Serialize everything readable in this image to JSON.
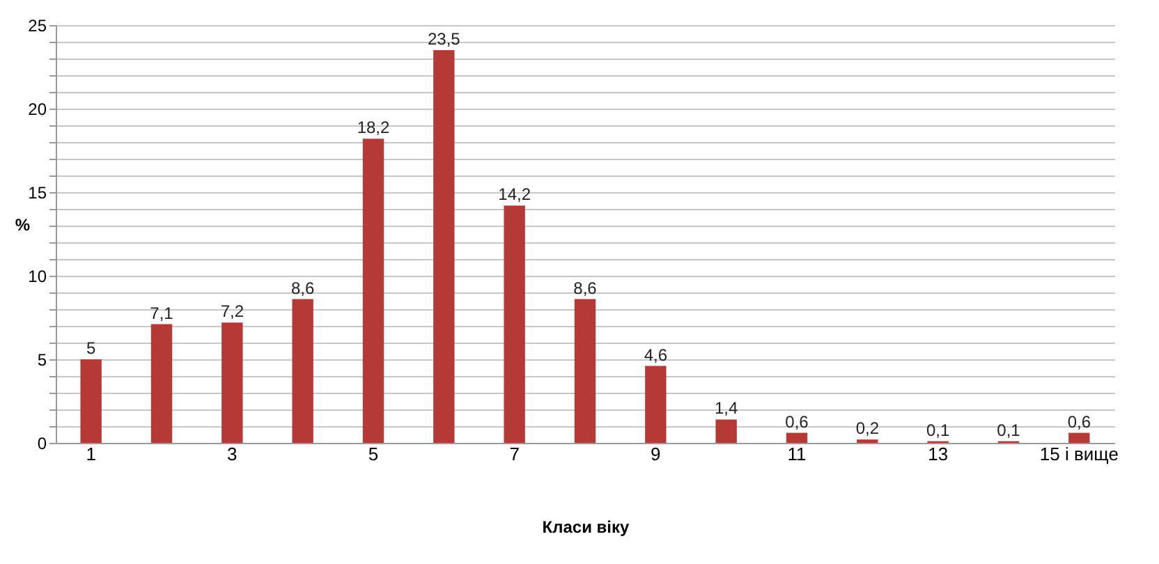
{
  "chart_data": {
    "type": "bar",
    "xlabel": "Класи віку",
    "ylabel": "%",
    "categories": [
      "1",
      null,
      "3",
      null,
      "5",
      null,
      "7",
      null,
      "9",
      null,
      "11",
      null,
      "13",
      null,
      "15 і вище"
    ],
    "values": [
      5,
      7.1,
      7.2,
      8.6,
      18.2,
      23.5,
      14.2,
      8.6,
      4.6,
      1.4,
      0.6,
      0.2,
      0.1,
      0.1,
      0.6
    ],
    "value_labels": [
      "5",
      "7,1",
      "7,2",
      "8,6",
      "18,2",
      "23,5",
      "14,2",
      "8,6",
      "4,6",
      "1,4",
      "0,6",
      "0,2",
      "0,1",
      "0,1",
      "0,6"
    ],
    "color": "#b53a35",
    "ylim": [
      0,
      25
    ],
    "yticks": [
      0,
      {
        "value": 1,
        "label": null
      },
      {
        "value": 2,
        "label": null
      },
      {
        "value": 3,
        "label": null
      },
      {
        "value": 4,
        "label": null
      },
      5,
      {
        "value": 6,
        "label": null
      },
      {
        "value": 7,
        "label": null
      },
      {
        "value": 8,
        "label": null
      },
      {
        "value": 9,
        "label": null
      },
      10,
      {
        "value": 11,
        "label": null
      },
      {
        "value": 12,
        "label": null
      },
      {
        "value": 13,
        "label": null
      },
      {
        "value": 14,
        "label": null
      },
      15,
      {
        "value": 16,
        "label": null
      },
      {
        "value": 17,
        "label": null
      },
      {
        "value": 18,
        "label": null
      },
      {
        "value": 19,
        "label": null
      },
      20,
      {
        "value": 21,
        "label": null
      },
      {
        "value": 22,
        "label": null
      },
      {
        "value": 23,
        "label": null
      },
      {
        "value": 24,
        "label": null
      },
      25
    ],
    "grid": true
  }
}
